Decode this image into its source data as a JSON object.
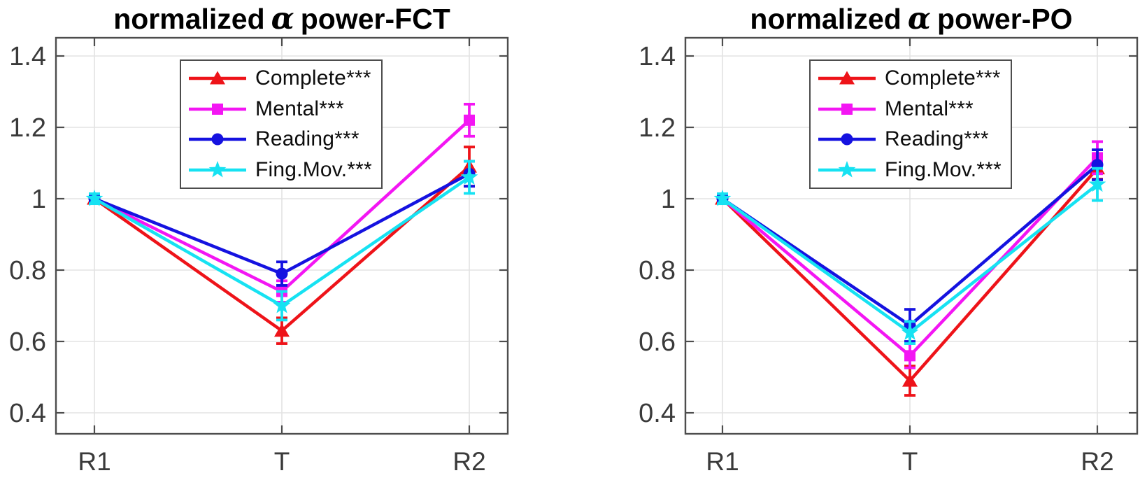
{
  "figure": {
    "background": "#ffffff",
    "grid_color": "#e3e3e3",
    "axis_color": "#4d4d4d",
    "tick_label_color": "#3a3a3a",
    "title_color": "#000000"
  },
  "legend": {
    "entries": [
      {
        "label": "Complete***",
        "marker": "triangle",
        "color": "#ee1319"
      },
      {
        "label": "Mental***",
        "marker": "square",
        "color": "#f316f3"
      },
      {
        "label": "Reading***",
        "marker": "circle",
        "color": "#1512e0"
      },
      {
        "label": "Fing.Mov.***",
        "marker": "star",
        "color": "#16e2f2"
      }
    ]
  },
  "chart_data": [
    {
      "type": "line",
      "title": {
        "prefix": "normalized",
        "alpha": "α",
        "suffix": "power-FCT"
      },
      "categories": [
        "R1",
        "T",
        "R2"
      ],
      "ylim": [
        0.34,
        1.45
      ],
      "yticks": [
        0.4,
        0.6,
        0.8,
        1,
        1.2,
        1.4
      ],
      "grid": true,
      "legend_position": "upper-left-inside",
      "series": [
        {
          "name": "Complete***",
          "marker": "triangle",
          "color": "#ee1319",
          "values": [
            1.0,
            0.63,
            1.09
          ],
          "errors": [
            0.012,
            0.036,
            0.055
          ]
        },
        {
          "name": "Mental***",
          "marker": "square",
          "color": "#f316f3",
          "values": [
            1.0,
            0.74,
            1.22
          ],
          "errors": [
            0.012,
            0.03,
            0.045
          ]
        },
        {
          "name": "Reading***",
          "marker": "circle",
          "color": "#1512e0",
          "values": [
            1.0,
            0.79,
            1.07
          ],
          "errors": [
            0.012,
            0.033,
            0.035
          ]
        },
        {
          "name": "Fing.Mov.***",
          "marker": "star",
          "color": "#16e2f2",
          "values": [
            1.0,
            0.7,
            1.06
          ],
          "errors": [
            0.014,
            0.04,
            0.045
          ]
        }
      ]
    },
    {
      "type": "line",
      "title": {
        "prefix": "normalized",
        "alpha": "α",
        "suffix": "power-PO"
      },
      "categories": [
        "R1",
        "T",
        "R2"
      ],
      "ylim": [
        0.34,
        1.45
      ],
      "yticks": [
        0.4,
        0.6,
        0.8,
        1,
        1.2,
        1.4
      ],
      "grid": true,
      "legend_position": "upper-left-inside",
      "series": [
        {
          "name": "Complete***",
          "marker": "triangle",
          "color": "#ee1319",
          "values": [
            1.0,
            0.49,
            1.085
          ],
          "errors": [
            0.012,
            0.041,
            0.03
          ]
        },
        {
          "name": "Mental***",
          "marker": "square",
          "color": "#f316f3",
          "values": [
            1.0,
            0.56,
            1.115
          ],
          "errors": [
            0.012,
            0.034,
            0.045
          ]
        },
        {
          "name": "Reading***",
          "marker": "circle",
          "color": "#1512e0",
          "values": [
            1.0,
            0.645,
            1.095
          ],
          "errors": [
            0.012,
            0.045,
            0.042
          ]
        },
        {
          "name": "Fing.Mov.***",
          "marker": "star",
          "color": "#16e2f2",
          "values": [
            1.0,
            0.625,
            1.04
          ],
          "errors": [
            0.014,
            0.031,
            0.045
          ]
        }
      ]
    }
  ]
}
